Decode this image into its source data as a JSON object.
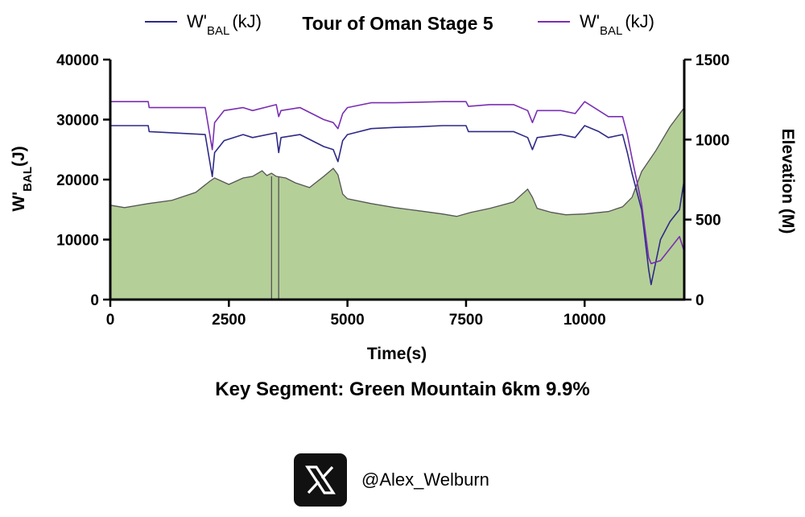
{
  "chart_data": {
    "type": "line",
    "title": "Tour of Oman Stage 5",
    "xlabel": "Time(s)",
    "ylabel_left": {
      "main": "W",
      "prime": "'",
      "sub": "BAL",
      "unit": "(J)"
    },
    "ylabel_right": "Elevation (M)",
    "xlim": [
      0,
      12100
    ],
    "ylim_left": [
      0,
      40000
    ],
    "ylim_right": [
      0,
      1500
    ],
    "x_ticks": [
      0,
      2500,
      5000,
      7500,
      10000
    ],
    "x_tick_labels": [
      "0",
      "2500",
      "5000",
      "7500",
      "10000"
    ],
    "y_left_ticks": [
      0,
      10000,
      20000,
      30000,
      40000
    ],
    "y_left_tick_labels": [
      "0",
      "10000",
      "20000",
      "30000",
      "40000"
    ],
    "y_right_ticks": [
      0,
      500,
      1000,
      1500
    ],
    "y_right_tick_labels": [
      "0",
      "500",
      "1000",
      "1500"
    ],
    "legend": [
      {
        "main": "W",
        "prime": "'",
        "sub": "BAL",
        "unit": "(kJ)",
        "color": "#2e2a86"
      },
      {
        "main": "W",
        "prime": "'",
        "sub": "BAL",
        "unit": "(kJ)",
        "color": "#7a2fb3"
      }
    ],
    "legend_placement": "top",
    "elevation": {
      "axis": "right",
      "fill": "#b5cf98",
      "stroke": "#555555",
      "x": [
        0,
        300,
        800,
        1300,
        1800,
        2100,
        2200,
        2500,
        2800,
        3000,
        3200,
        3300,
        3400,
        3500,
        3700,
        3900,
        4200,
        4500,
        4700,
        4800,
        4900,
        5000,
        5500,
        6000,
        6500,
        7000,
        7300,
        7600,
        8000,
        8500,
        8800,
        8900,
        9000,
        9300,
        9600,
        10000,
        10500,
        10800,
        11000,
        11200,
        11500,
        11800,
        12100
      ],
      "y": [
        590,
        575,
        600,
        620,
        670,
        740,
        760,
        720,
        760,
        770,
        805,
        775,
        790,
        770,
        760,
        730,
        700,
        770,
        820,
        780,
        660,
        630,
        600,
        575,
        555,
        535,
        520,
        545,
        570,
        610,
        690,
        640,
        570,
        545,
        530,
        535,
        550,
        580,
        640,
        800,
        930,
        1080,
        1200
      ]
    },
    "segment_lines": {
      "axis": "right",
      "x": [
        3400,
        3550
      ],
      "y_top": 770
    },
    "series": [
      {
        "name": "W'BAL (kJ)",
        "axis": "left",
        "color": "#2e2a86",
        "x": [
          0,
          800,
          820,
          2000,
          2150,
          2200,
          2400,
          2800,
          3000,
          3500,
          3550,
          3600,
          4000,
          4500,
          4700,
          4800,
          4900,
          5000,
          5500,
          6000,
          6500,
          7000,
          7500,
          7550,
          8000,
          8500,
          8800,
          8900,
          9000,
          9500,
          9800,
          10000,
          10300,
          10500,
          10800,
          10900,
          11000,
          11200,
          11350,
          11400,
          11600,
          11800,
          12000,
          12100
        ],
        "y": [
          29000,
          29000,
          28000,
          27500,
          20500,
          24500,
          26500,
          27500,
          27000,
          27800,
          24500,
          27000,
          27500,
          25500,
          25000,
          23000,
          26500,
          27500,
          28500,
          28700,
          28800,
          29000,
          29000,
          28000,
          28000,
          28000,
          27000,
          25000,
          27000,
          27500,
          27000,
          29000,
          28000,
          27000,
          27500,
          24500,
          21000,
          15000,
          5000,
          2500,
          10000,
          13000,
          15000,
          20000
        ]
      },
      {
        "name": "W'BAL (kJ)",
        "axis": "left",
        "color": "#7a2fb3",
        "x": [
          0,
          800,
          820,
          2000,
          2150,
          2200,
          2400,
          2800,
          3000,
          3500,
          3550,
          3600,
          4000,
          4500,
          4700,
          4800,
          4900,
          5000,
          5500,
          6000,
          6500,
          7000,
          7500,
          7550,
          8000,
          8500,
          8800,
          8900,
          9000,
          9500,
          9800,
          10000,
          10300,
          10500,
          10800,
          10900,
          11000,
          11200,
          11350,
          11400,
          11600,
          11800,
          12000,
          12100
        ],
        "y": [
          33000,
          33000,
          32000,
          32000,
          25000,
          29500,
          31500,
          32000,
          31500,
          32500,
          30500,
          31500,
          32000,
          30000,
          29500,
          28500,
          31000,
          32000,
          32800,
          32800,
          32900,
          33000,
          33000,
          32200,
          32500,
          32500,
          31500,
          29500,
          31500,
          31500,
          31000,
          33000,
          31500,
          30500,
          30500,
          27500,
          23500,
          16000,
          7000,
          6000,
          6500,
          8500,
          10500,
          8000
        ]
      }
    ]
  },
  "subtitle": "Key Segment: Green Mountain 6km 9.9%",
  "social": {
    "icon": "x-logo-icon",
    "handle": "@Alex_Welburn"
  }
}
